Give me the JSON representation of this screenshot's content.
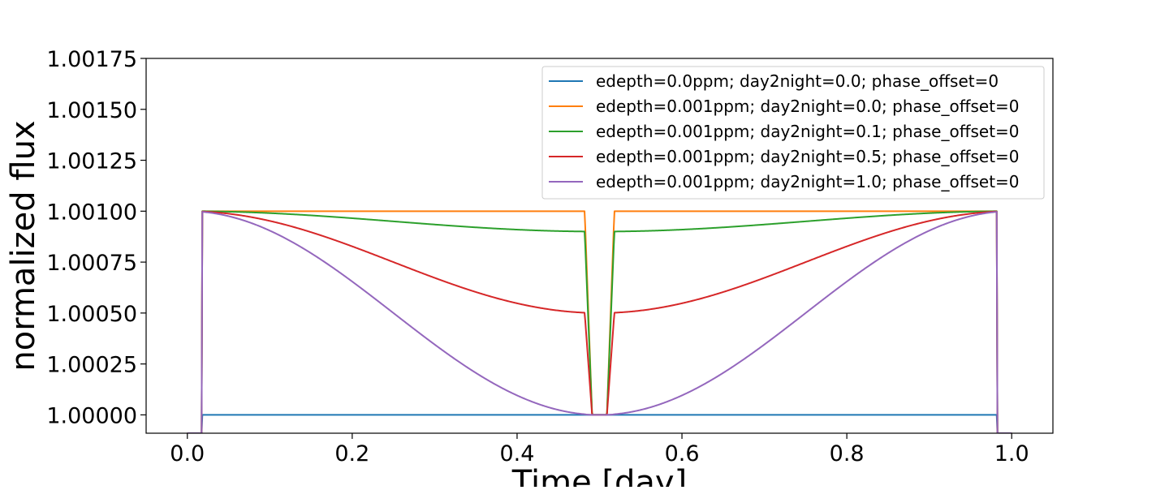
{
  "chart_data": {
    "type": "line",
    "title": "",
    "xlabel": "Time [day]",
    "ylabel": "normalized flux",
    "xlim": [
      -0.05,
      1.05
    ],
    "ylim": [
      0.99991,
      1.00175
    ],
    "xticks": [
      0.0,
      0.2,
      0.4,
      0.6,
      0.8,
      1.0
    ],
    "xtick_labels": [
      "0.0",
      "0.2",
      "0.4",
      "0.6",
      "0.8",
      "1.0"
    ],
    "yticks": [
      1.0,
      1.00025,
      1.0005,
      1.00075,
      1.001,
      1.00125,
      1.0015,
      1.00175
    ],
    "ytick_labels": [
      "1.00000",
      "1.00025",
      "1.00050",
      "1.00075",
      "1.00100",
      "1.00125",
      "1.00150",
      "1.00175"
    ],
    "grid": false,
    "legend_position": "upper right",
    "model": {
      "period": 1.0,
      "transit_center": 0.0,
      "transit_edges": [
        0.0175,
        0.9825
      ],
      "eclipse_center": 0.5,
      "eclipse_ingress_start": 0.482,
      "eclipse_full_start": 0.491,
      "eclipse_full_end": 0.509,
      "eclipse_egress_end": 0.518,
      "transit_bottom": 0.99991,
      "x_range": [
        0.0,
        1.0
      ],
      "n_points": 1101
    },
    "series": [
      {
        "name": "edepth=0.0ppm; day2night=0.0; phase_offset=0",
        "color": "#1f77b4",
        "edepth": 0.0,
        "day2night": 0.0,
        "phase_offset": 0
      },
      {
        "name": "edepth=0.001ppm; day2night=0.0; phase_offset=0",
        "color": "#ff7f0e",
        "edepth": 0.001,
        "day2night": 0.0,
        "phase_offset": 0
      },
      {
        "name": "edepth=0.001ppm; day2night=0.1; phase_offset=0",
        "color": "#2ca02c",
        "edepth": 0.001,
        "day2night": 0.1,
        "phase_offset": 0
      },
      {
        "name": "edepth=0.001ppm; day2night=0.5; phase_offset=0",
        "color": "#d62728",
        "edepth": 0.001,
        "day2night": 0.5,
        "phase_offset": 0
      },
      {
        "name": "edepth=0.001ppm; day2night=1.0; phase_offset=0",
        "color": "#9467bd",
        "edepth": 0.001,
        "day2night": 1.0,
        "phase_offset": 0
      }
    ]
  }
}
